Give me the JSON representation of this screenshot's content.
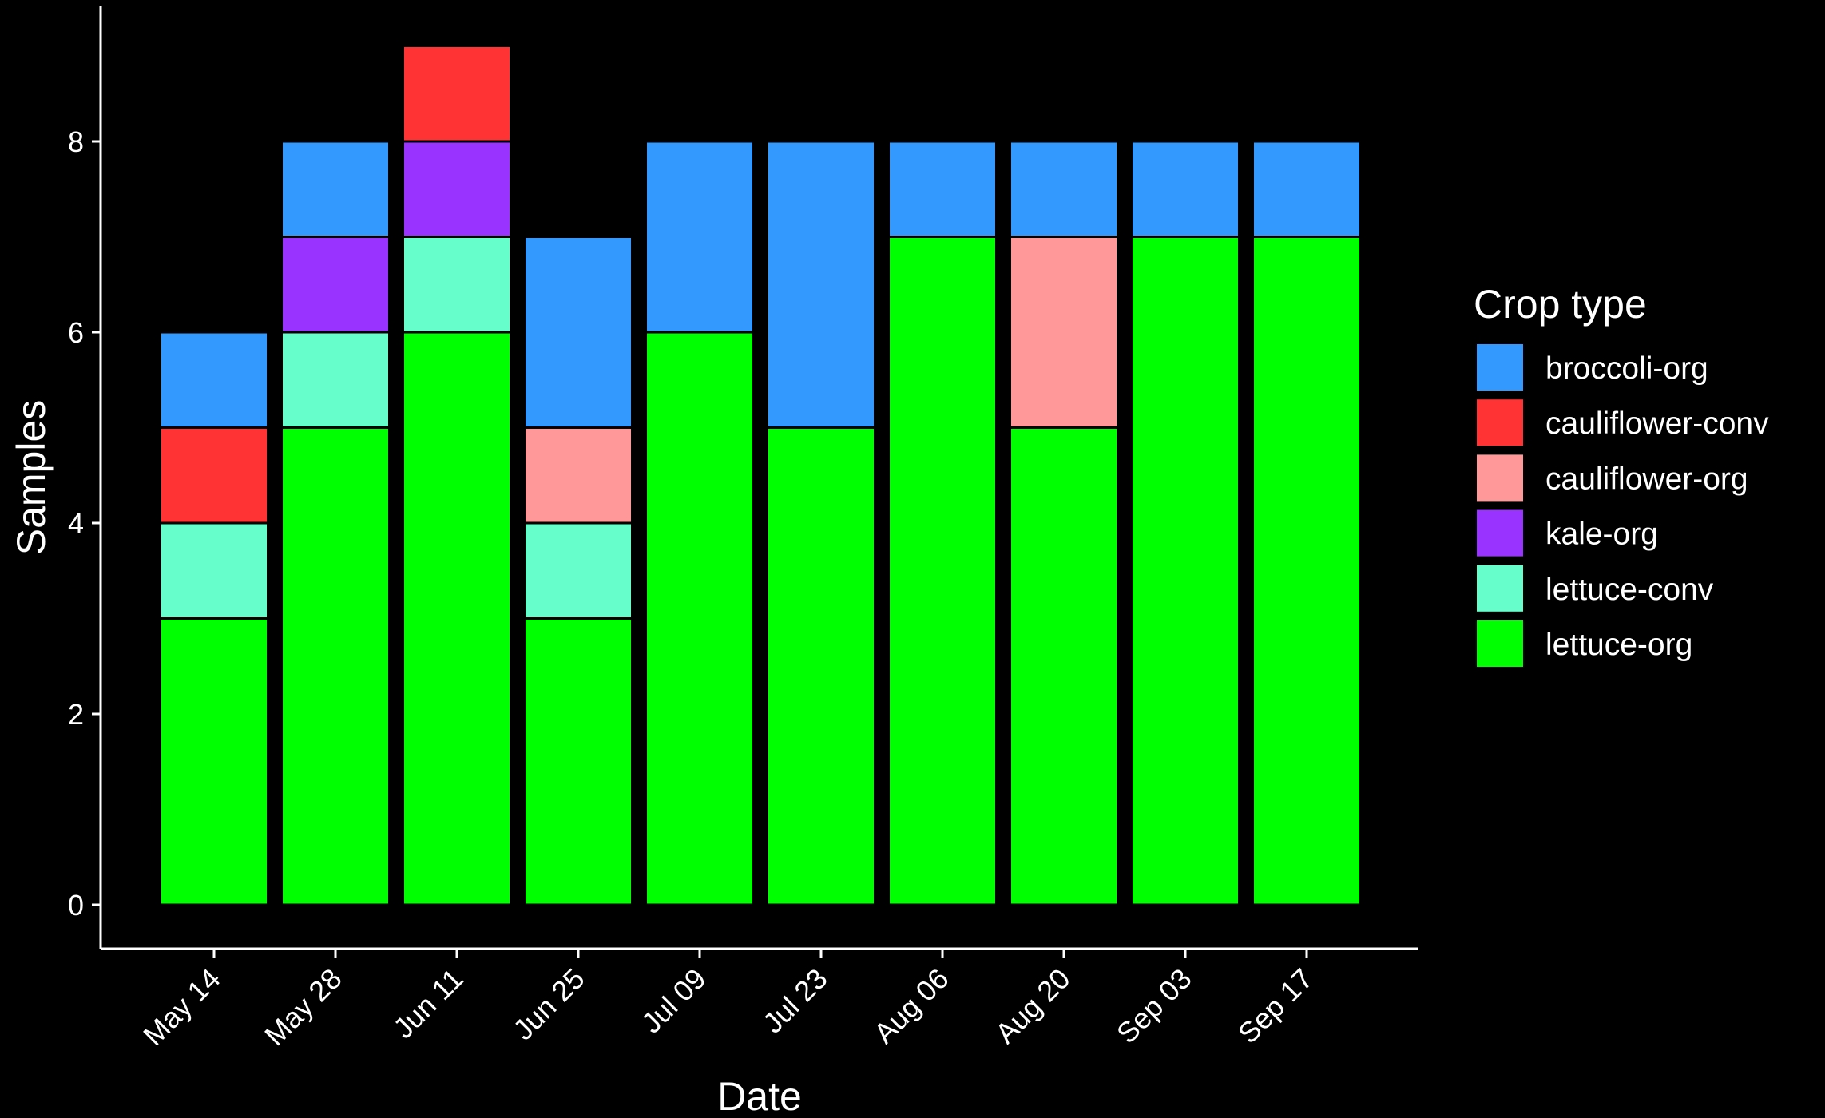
{
  "chart_data": {
    "type": "bar",
    "stacked": true,
    "xlabel": "Date",
    "ylabel": "Samples",
    "ylim": [
      0,
      9.4
    ],
    "yticks": [
      0,
      2,
      4,
      6,
      8
    ],
    "categories": [
      "May 14",
      "May 28",
      "Jun 11",
      "Jun 25",
      "Jul 09",
      "Jul 23",
      "Aug 06",
      "Aug 20",
      "Sep 03",
      "Sep 17"
    ],
    "series": [
      {
        "name": "lettuce-org",
        "color": "#00ff00",
        "values": [
          3,
          5,
          6,
          3,
          6,
          5,
          7,
          5,
          7,
          7
        ]
      },
      {
        "name": "lettuce-conv",
        "color": "#66ffcc",
        "values": [
          1,
          1,
          1,
          1,
          0,
          0,
          0,
          0,
          0,
          0
        ]
      },
      {
        "name": "kale-org",
        "color": "#9933ff",
        "values": [
          0,
          1,
          1,
          0,
          0,
          0,
          0,
          0,
          0,
          0
        ]
      },
      {
        "name": "cauliflower-org",
        "color": "#ff9999",
        "values": [
          0,
          0,
          0,
          1,
          0,
          0,
          0,
          2,
          0,
          0
        ]
      },
      {
        "name": "cauliflower-conv",
        "color": "#ff3333",
        "values": [
          1,
          0,
          1,
          0,
          0,
          0,
          0,
          0,
          0,
          0
        ]
      },
      {
        "name": "broccoli-org",
        "color": "#3399ff",
        "values": [
          1,
          1,
          0,
          2,
          2,
          3,
          1,
          1,
          1,
          1
        ]
      }
    ],
    "legend": {
      "title": "Crop type",
      "position": "right",
      "order": [
        "broccoli-org",
        "cauliflower-conv",
        "cauliflower-org",
        "kale-org",
        "lettuce-conv",
        "lettuce-org"
      ]
    },
    "grid": false,
    "background": "#000000",
    "foreground": "#ffffff"
  }
}
